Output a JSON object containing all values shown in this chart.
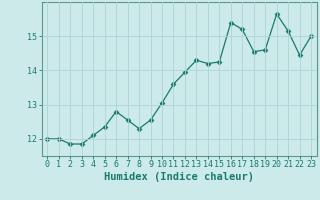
{
  "x": [
    0,
    1,
    2,
    3,
    4,
    5,
    6,
    7,
    8,
    9,
    10,
    11,
    12,
    13,
    14,
    15,
    16,
    17,
    18,
    19,
    20,
    21,
    22,
    23
  ],
  "y": [
    12.0,
    12.0,
    11.85,
    11.85,
    12.1,
    12.35,
    12.8,
    12.55,
    12.3,
    12.55,
    13.05,
    13.6,
    13.95,
    14.3,
    14.2,
    14.25,
    15.4,
    15.2,
    14.55,
    14.6,
    15.65,
    15.15,
    14.45,
    15.0
  ],
  "line_color": "#1a7a6e",
  "marker": "D",
  "markersize": 2.5,
  "bg_color": "#cceaea",
  "grid_color": "#afd4d4",
  "xlabel": "Humidex (Indice chaleur)",
  "xlabel_fontsize": 7.5,
  "yticks": [
    12,
    13,
    14,
    15
  ],
  "xticks": [
    0,
    1,
    2,
    3,
    4,
    5,
    6,
    7,
    8,
    9,
    10,
    11,
    12,
    13,
    14,
    15,
    16,
    17,
    18,
    19,
    20,
    21,
    22,
    23
  ],
  "ylim": [
    11.5,
    16.0
  ],
  "xlim": [
    -0.5,
    23.5
  ],
  "tick_fontsize": 6,
  "spine_color": "#5a9a8a"
}
